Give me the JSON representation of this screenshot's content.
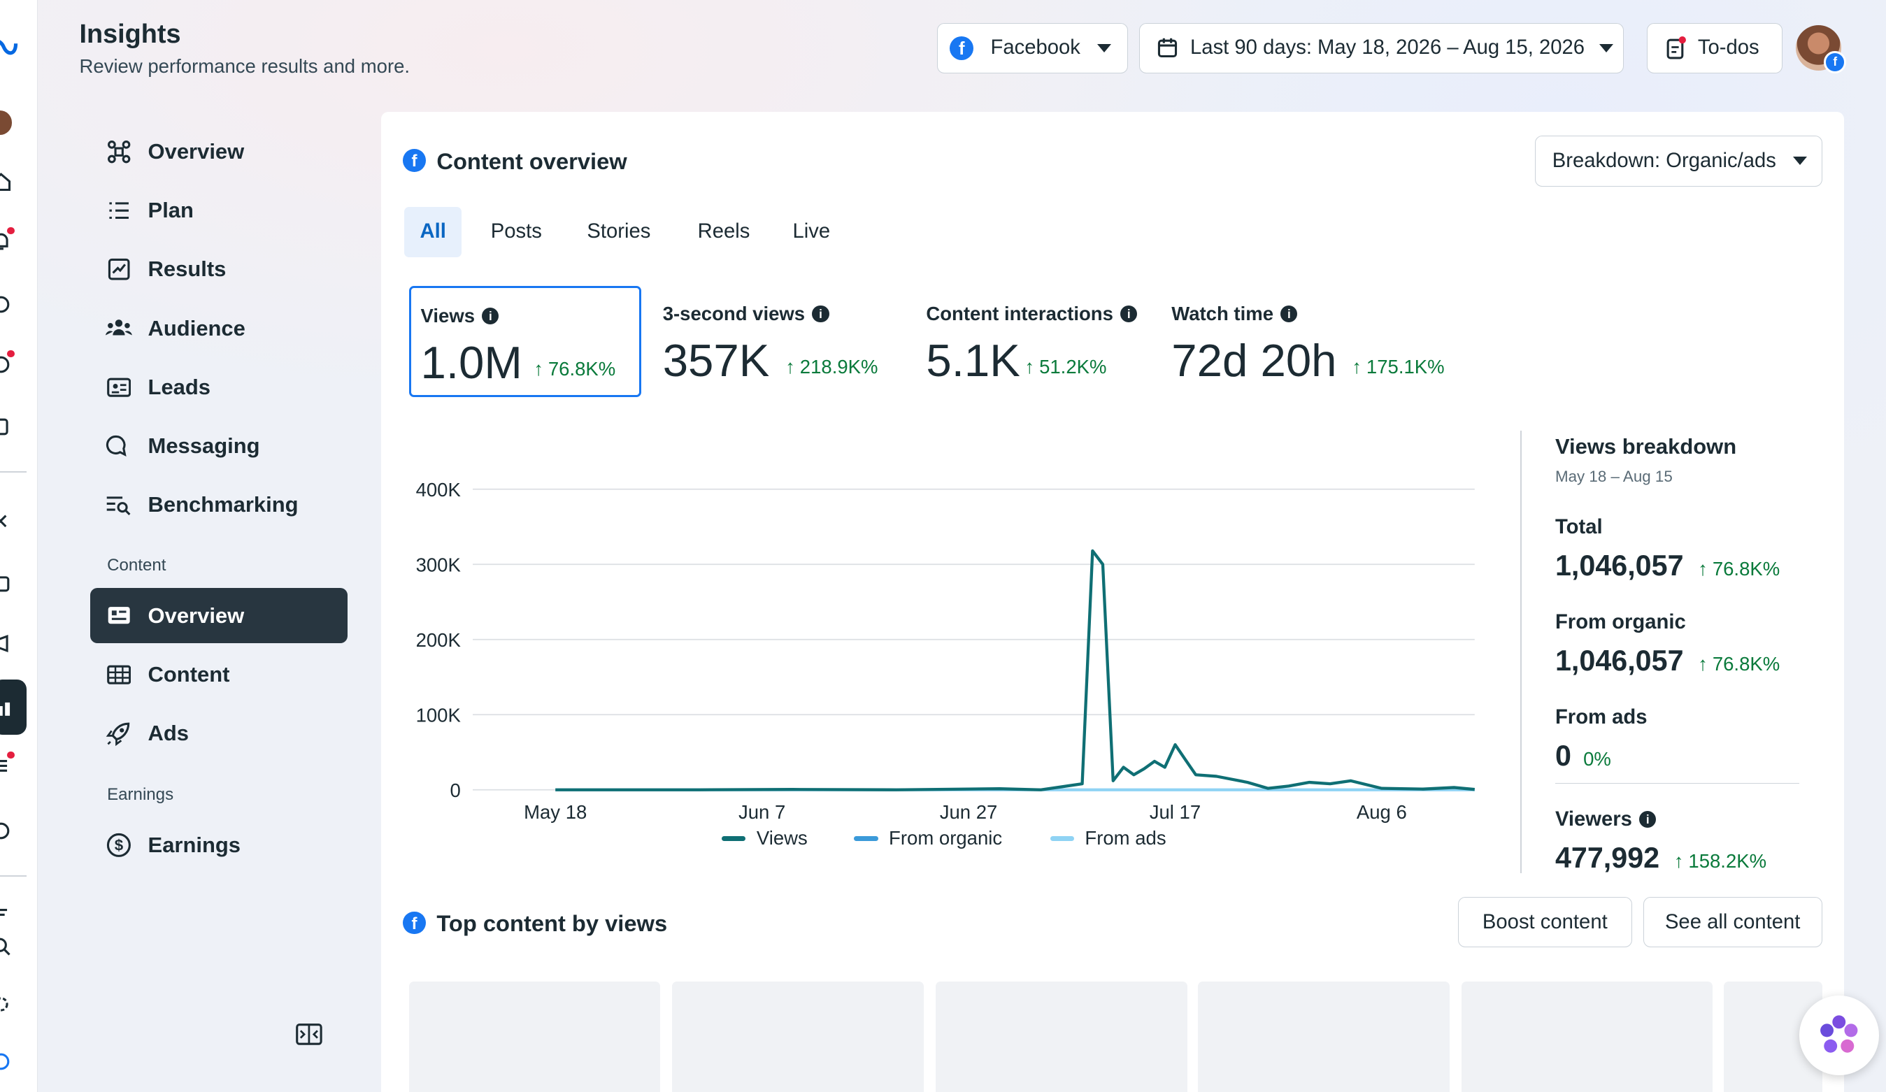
{
  "header": {
    "title": "Insights",
    "subtitle": "Review performance results and more.",
    "platform_label": "Facebook",
    "date_range_label": "Last 90 days: May 18, 2026 – Aug 15, 2026",
    "todos_label": "To-dos"
  },
  "nav": {
    "items": [
      {
        "label": "Overview"
      },
      {
        "label": "Plan"
      },
      {
        "label": "Results"
      },
      {
        "label": "Audience"
      },
      {
        "label": "Leads"
      },
      {
        "label": "Messaging"
      },
      {
        "label": "Benchmarking"
      }
    ],
    "content_section": "Content",
    "content_items": [
      {
        "label": "Overview"
      },
      {
        "label": "Content"
      },
      {
        "label": "Ads"
      }
    ],
    "earnings_section": "Earnings",
    "earnings_items": [
      {
        "label": "Earnings"
      }
    ]
  },
  "overview": {
    "title": "Content overview",
    "breakdown_label": "Breakdown: Organic/ads",
    "tabs": [
      "All",
      "Posts",
      "Stories",
      "Reels",
      "Live"
    ],
    "selected_tab": "All",
    "metrics": [
      {
        "label": "Views",
        "value": "1.0M",
        "delta": "76.8K%"
      },
      {
        "label": "3-second views",
        "value": "357K",
        "delta": "218.9K%"
      },
      {
        "label": "Content interactions",
        "value": "5.1K",
        "delta": "51.2K%"
      },
      {
        "label": "Watch time",
        "value": "72d 20h",
        "delta": "175.1K%"
      }
    ]
  },
  "chart_data": {
    "type": "line",
    "y_ticks": [
      "400K",
      "300K",
      "200K",
      "100K",
      "0"
    ],
    "x_ticks": [
      "May 18",
      "Jun 7",
      "Jun 27",
      "Jul 17",
      "Aug 6"
    ],
    "ylim": [
      0,
      400000
    ],
    "x_range": [
      "2026-05-18",
      "2026-08-15"
    ],
    "grid": true,
    "legend_position": "bottom",
    "series": [
      {
        "name": "Views",
        "color": "#0f6f74",
        "points": [
          [
            "2026-05-18",
            0
          ],
          [
            "2026-06-01",
            0
          ],
          [
            "2026-06-10",
            500
          ],
          [
            "2026-06-20",
            0
          ],
          [
            "2026-06-30",
            1500
          ],
          [
            "2026-07-04",
            0
          ],
          [
            "2026-07-08",
            8000
          ],
          [
            "2026-07-09",
            318000
          ],
          [
            "2026-07-10",
            300000
          ],
          [
            "2026-07-11",
            12000
          ],
          [
            "2026-07-12",
            30000
          ],
          [
            "2026-07-13",
            20000
          ],
          [
            "2026-07-14",
            28000
          ],
          [
            "2026-07-15",
            38000
          ],
          [
            "2026-07-16",
            30000
          ],
          [
            "2026-07-17",
            60000
          ],
          [
            "2026-07-18",
            40000
          ],
          [
            "2026-07-19",
            20000
          ],
          [
            "2026-07-21",
            18000
          ],
          [
            "2026-07-24",
            10000
          ],
          [
            "2026-07-26",
            2000
          ],
          [
            "2026-07-28",
            5000
          ],
          [
            "2026-07-30",
            10000
          ],
          [
            "2026-08-01",
            8000
          ],
          [
            "2026-08-03",
            12000
          ],
          [
            "2026-08-06",
            2000
          ],
          [
            "2026-08-10",
            1000
          ],
          [
            "2026-08-13",
            3000
          ],
          [
            "2026-08-15",
            500
          ]
        ]
      },
      {
        "name": "From organic",
        "color": "#3b9ad9",
        "points": []
      },
      {
        "name": "From ads",
        "color": "#8fd3f4",
        "points": []
      }
    ]
  },
  "breakdown": {
    "title": "Views breakdown",
    "range": "May 18 – Aug 15",
    "total_label": "Total",
    "total_value": "1,046,057",
    "total_delta": "76.8K%",
    "organic_label": "From organic",
    "organic_value": "1,046,057",
    "organic_delta": "76.8K%",
    "ads_label": "From ads",
    "ads_value": "0",
    "ads_delta": "0%",
    "viewers_label": "Viewers",
    "viewers_value": "477,992",
    "viewers_delta": "158.2K%"
  },
  "top_content": {
    "title": "Top content by views",
    "boost_label": "Boost content",
    "see_all_label": "See all content"
  }
}
